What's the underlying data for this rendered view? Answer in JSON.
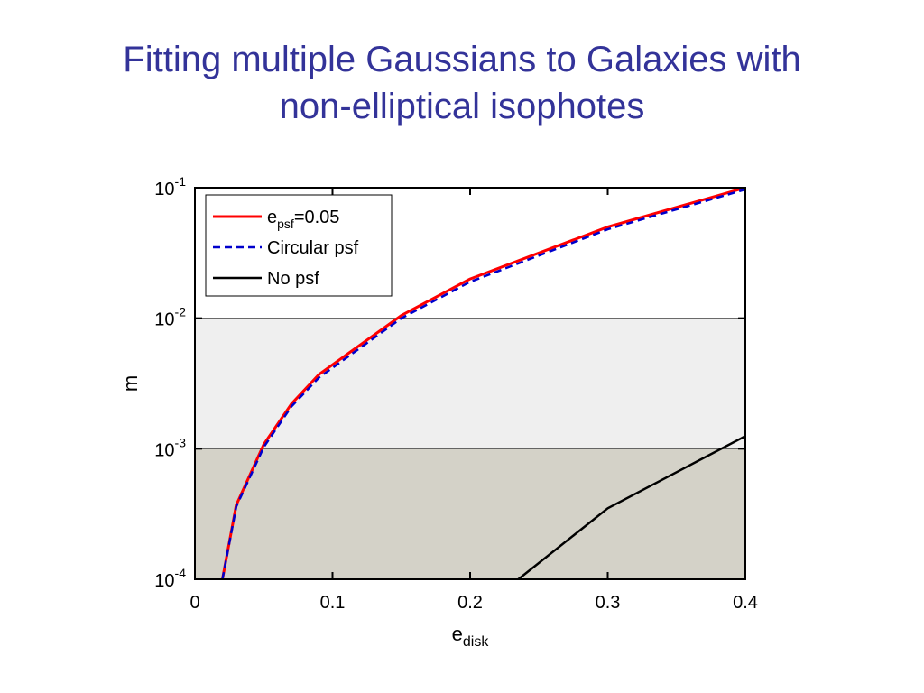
{
  "slide": {
    "title_line1": "Fitting multiple Gaussians to Galaxies with",
    "title_line2": "non-elliptical isophotes"
  },
  "chart_data": {
    "type": "line",
    "title": "",
    "xlabel": "e",
    "xlabel_sub": "disk",
    "ylabel": "m",
    "xlim": [
      0,
      0.4
    ],
    "ylim": [
      0.0001,
      0.1
    ],
    "yscale": "log",
    "x_ticks": [
      "0",
      "0.1",
      "0.2",
      "0.3",
      "0.4"
    ],
    "y_ticks": [
      {
        "base": "10",
        "exp": "-4",
        "value": 0.0001
      },
      {
        "base": "10",
        "exp": "-3",
        "value": 0.001
      },
      {
        "base": "10",
        "exp": "-2",
        "value": 0.01
      },
      {
        "base": "10",
        "exp": "-1",
        "value": 0.1
      }
    ],
    "shaded_bands": [
      {
        "from": 0.0001,
        "to": 0.001,
        "color": "#d4d2c8"
      },
      {
        "from": 0.001,
        "to": 0.01,
        "color": "#efefef"
      }
    ],
    "legend_position": "top-left",
    "grid": false,
    "series": [
      {
        "name_main": "e",
        "name_sub": "psf",
        "name_rest": "=0.05",
        "color": "#ff0000",
        "style": "solid",
        "x": [
          0.02,
          0.03,
          0.05,
          0.07,
          0.09,
          0.15,
          0.2,
          0.3,
          0.4
        ],
        "y": [
          0.0001,
          0.00037,
          0.00108,
          0.0022,
          0.0037,
          0.0105,
          0.02,
          0.05,
          0.1
        ]
      },
      {
        "name_main": "Circular psf",
        "name_sub": "",
        "name_rest": "",
        "color": "#0000cc",
        "style": "dashed",
        "x": [
          0.02,
          0.03,
          0.05,
          0.07,
          0.09,
          0.15,
          0.2,
          0.3,
          0.4
        ],
        "y": [
          0.0001,
          0.00036,
          0.00103,
          0.0021,
          0.0035,
          0.01,
          0.019,
          0.048,
          0.097
        ]
      },
      {
        "name_main": "No psf",
        "name_sub": "",
        "name_rest": "",
        "color": "#000000",
        "style": "solid",
        "x": [
          0.235,
          0.3,
          0.4
        ],
        "y": [
          0.0001,
          0.00035,
          0.00125
        ]
      }
    ]
  }
}
